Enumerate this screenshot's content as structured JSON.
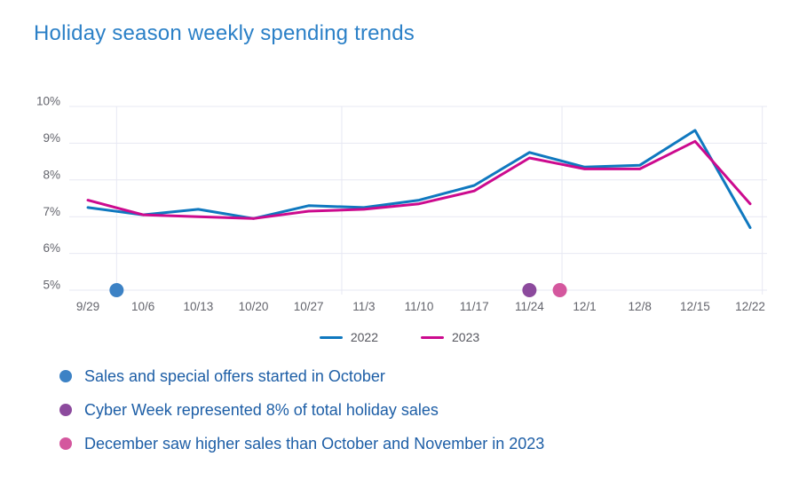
{
  "title": "Holiday season weekly spending trends",
  "chart_data": {
    "type": "line",
    "title": "Holiday season weekly spending trends",
    "categories": [
      "9/29",
      "10/6",
      "10/13",
      "10/20",
      "10/27",
      "11/3",
      "11/10",
      "11/17",
      "11/24",
      "12/1",
      "12/8",
      "12/15",
      "12/22"
    ],
    "series": [
      {
        "name": "2022",
        "color": "#0f78bf",
        "values": [
          7.25,
          7.05,
          7.2,
          6.95,
          7.3,
          7.25,
          7.45,
          7.85,
          8.75,
          8.35,
          8.4,
          9.35,
          6.7
        ]
      },
      {
        "name": "2023",
        "color": "#cc0a8e",
        "values": [
          7.45,
          7.05,
          7.0,
          6.95,
          7.15,
          7.2,
          7.35,
          7.7,
          8.6,
          8.3,
          8.3,
          9.05,
          7.35
        ]
      }
    ],
    "ylim": [
      5,
      10
    ],
    "ytick_values": [
      5,
      6,
      7,
      8,
      9,
      10
    ],
    "ytick_labels": [
      "5%",
      "6%",
      "7%",
      "8%",
      "9%",
      "10%"
    ],
    "grid": true,
    "month_gridline_indices": [
      0.52,
      4.6,
      8.59,
      12.22
    ],
    "legend_position": "bottom-center",
    "marker_y": 5
  },
  "annotations": [
    {
      "text": "Sales and special offers started in October",
      "color": "#3c82c5",
      "x_index": 0.52
    },
    {
      "text": "Cyber Week represented 8% of total holiday sales",
      "color": "#8c4a9d",
      "x_index": 8
    },
    {
      "text": "December saw higher sales than October and November in 2023",
      "color": "#d4579e",
      "x_index": 8.55
    }
  ],
  "colors": {
    "title": "#2b80c7",
    "note_text": "#1d5ea6",
    "axis_text": "#63646c",
    "gridline": "#e7e8f3",
    "legend_text": "#55565e",
    "background": "#ffffff"
  }
}
